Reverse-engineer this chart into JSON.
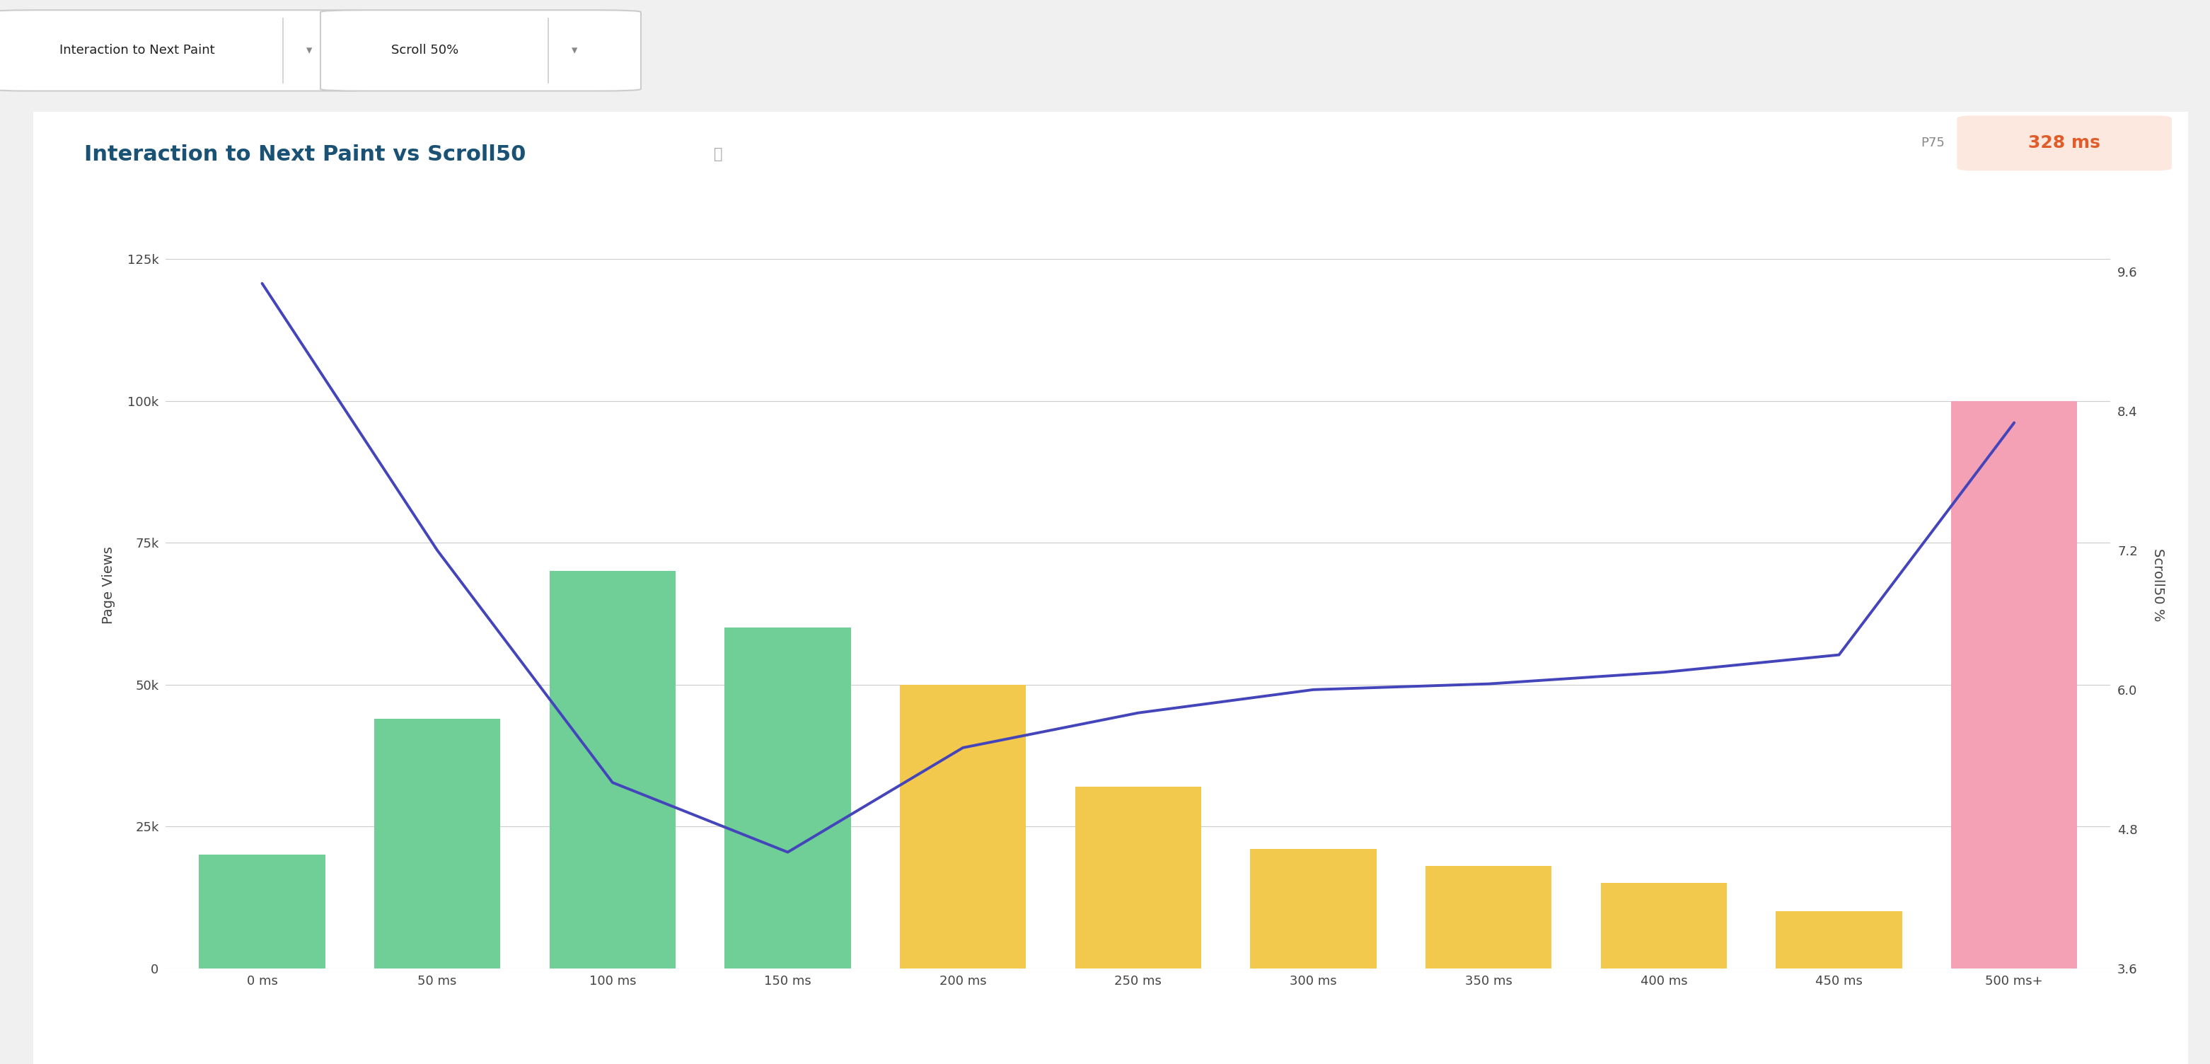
{
  "title": "Interaction to Next Paint vs Scroll50",
  "p75_label": "P75",
  "p75_value": "328 ms",
  "ylabel_left": "Page Views",
  "ylabel_right": "Scroll50 %",
  "background_color": "#f0f0f0",
  "chart_bg": "#ffffff",
  "bar_categories": [
    "0 ms",
    "50 ms",
    "100 ms",
    "150 ms",
    "200 ms",
    "250 ms",
    "300 ms",
    "350 ms",
    "400 ms",
    "450 ms",
    "500 ms+"
  ],
  "bar_values": [
    20000,
    44000,
    70000,
    60000,
    50000,
    32000,
    21000,
    18000,
    15000,
    10000,
    100000
  ],
  "bar_colors": [
    "#6fcf97",
    "#6fcf97",
    "#6fcf97",
    "#6fcf97",
    "#f2c94c",
    "#f2c94c",
    "#f2c94c",
    "#f2c94c",
    "#f2c94c",
    "#f2c94c",
    "#f4a0b5"
  ],
  "line_values": [
    9.5,
    7.2,
    5.2,
    4.6,
    5.5,
    5.8,
    6.0,
    6.05,
    6.15,
    6.3,
    8.3
  ],
  "line_color": "#4444bb",
  "ylim_left": [
    0,
    135000
  ],
  "ylim_right": [
    3.6,
    10.2
  ],
  "yticks_left": [
    0,
    25000,
    50000,
    75000,
    100000,
    125000
  ],
  "yticks_right": [
    3.6,
    4.8,
    6.0,
    7.2,
    8.4,
    9.6
  ],
  "title_color": "#1a5276",
  "title_fontsize": 22,
  "p75_bg": "#fde8e0",
  "p75_color": "#e05c2a",
  "dropdown_labels": [
    "Interaction to Next Paint",
    "Scroll 50%"
  ]
}
